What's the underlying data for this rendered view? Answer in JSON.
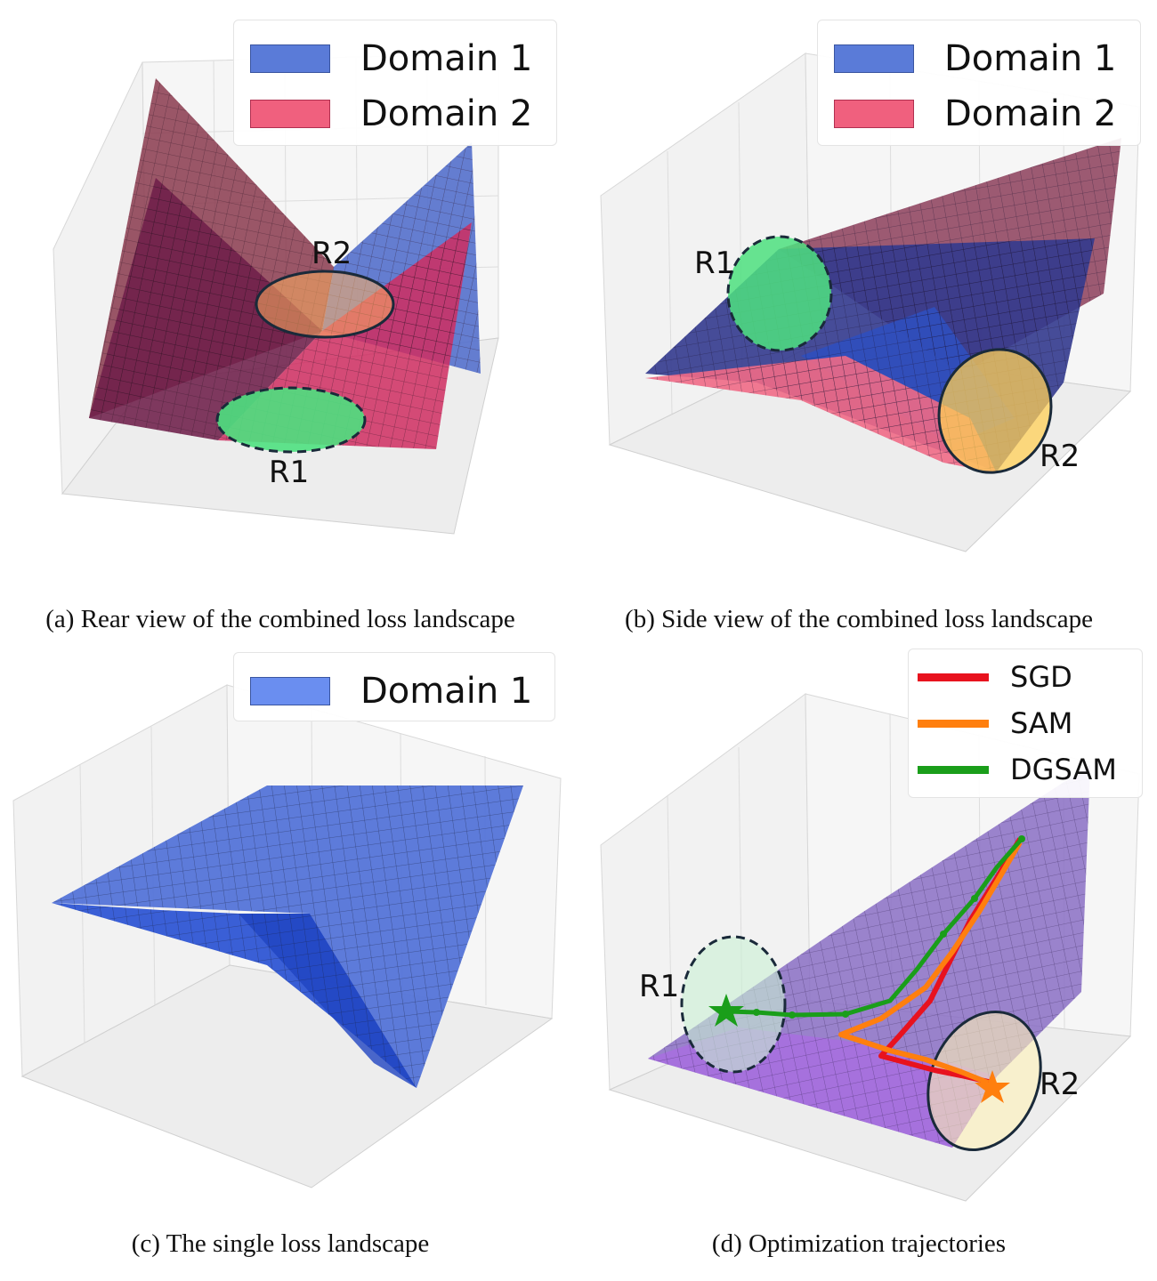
{
  "colors": {
    "domain1": "#4f6fd6",
    "domain2": "#ef4d6d",
    "region_flat": "#4ee07f",
    "region_sharp": "#ffd766",
    "sgd": "#e8121e",
    "sam": "#ff7f0e",
    "dgsam": "#1a9e1a"
  },
  "panels": {
    "a": {
      "caption": "(a) Rear view of the combined loss landscape",
      "legend": [
        "Domain 1",
        "Domain 2"
      ],
      "labels": {
        "r1": "R1",
        "r2": "R2"
      }
    },
    "b": {
      "caption": "(b) Side view of the combined loss landscape",
      "legend": [
        "Domain 1",
        "Domain 2"
      ],
      "labels": {
        "r1": "R1",
        "r2": "R2"
      }
    },
    "c": {
      "caption": "(c) The single loss landscape",
      "legend": [
        "Domain 1"
      ]
    },
    "d": {
      "caption": "(d) Optimization trajectories",
      "legend": [
        "SGD",
        "SAM",
        "DGSAM"
      ],
      "labels": {
        "r1": "R1",
        "r2": "R2"
      }
    }
  }
}
